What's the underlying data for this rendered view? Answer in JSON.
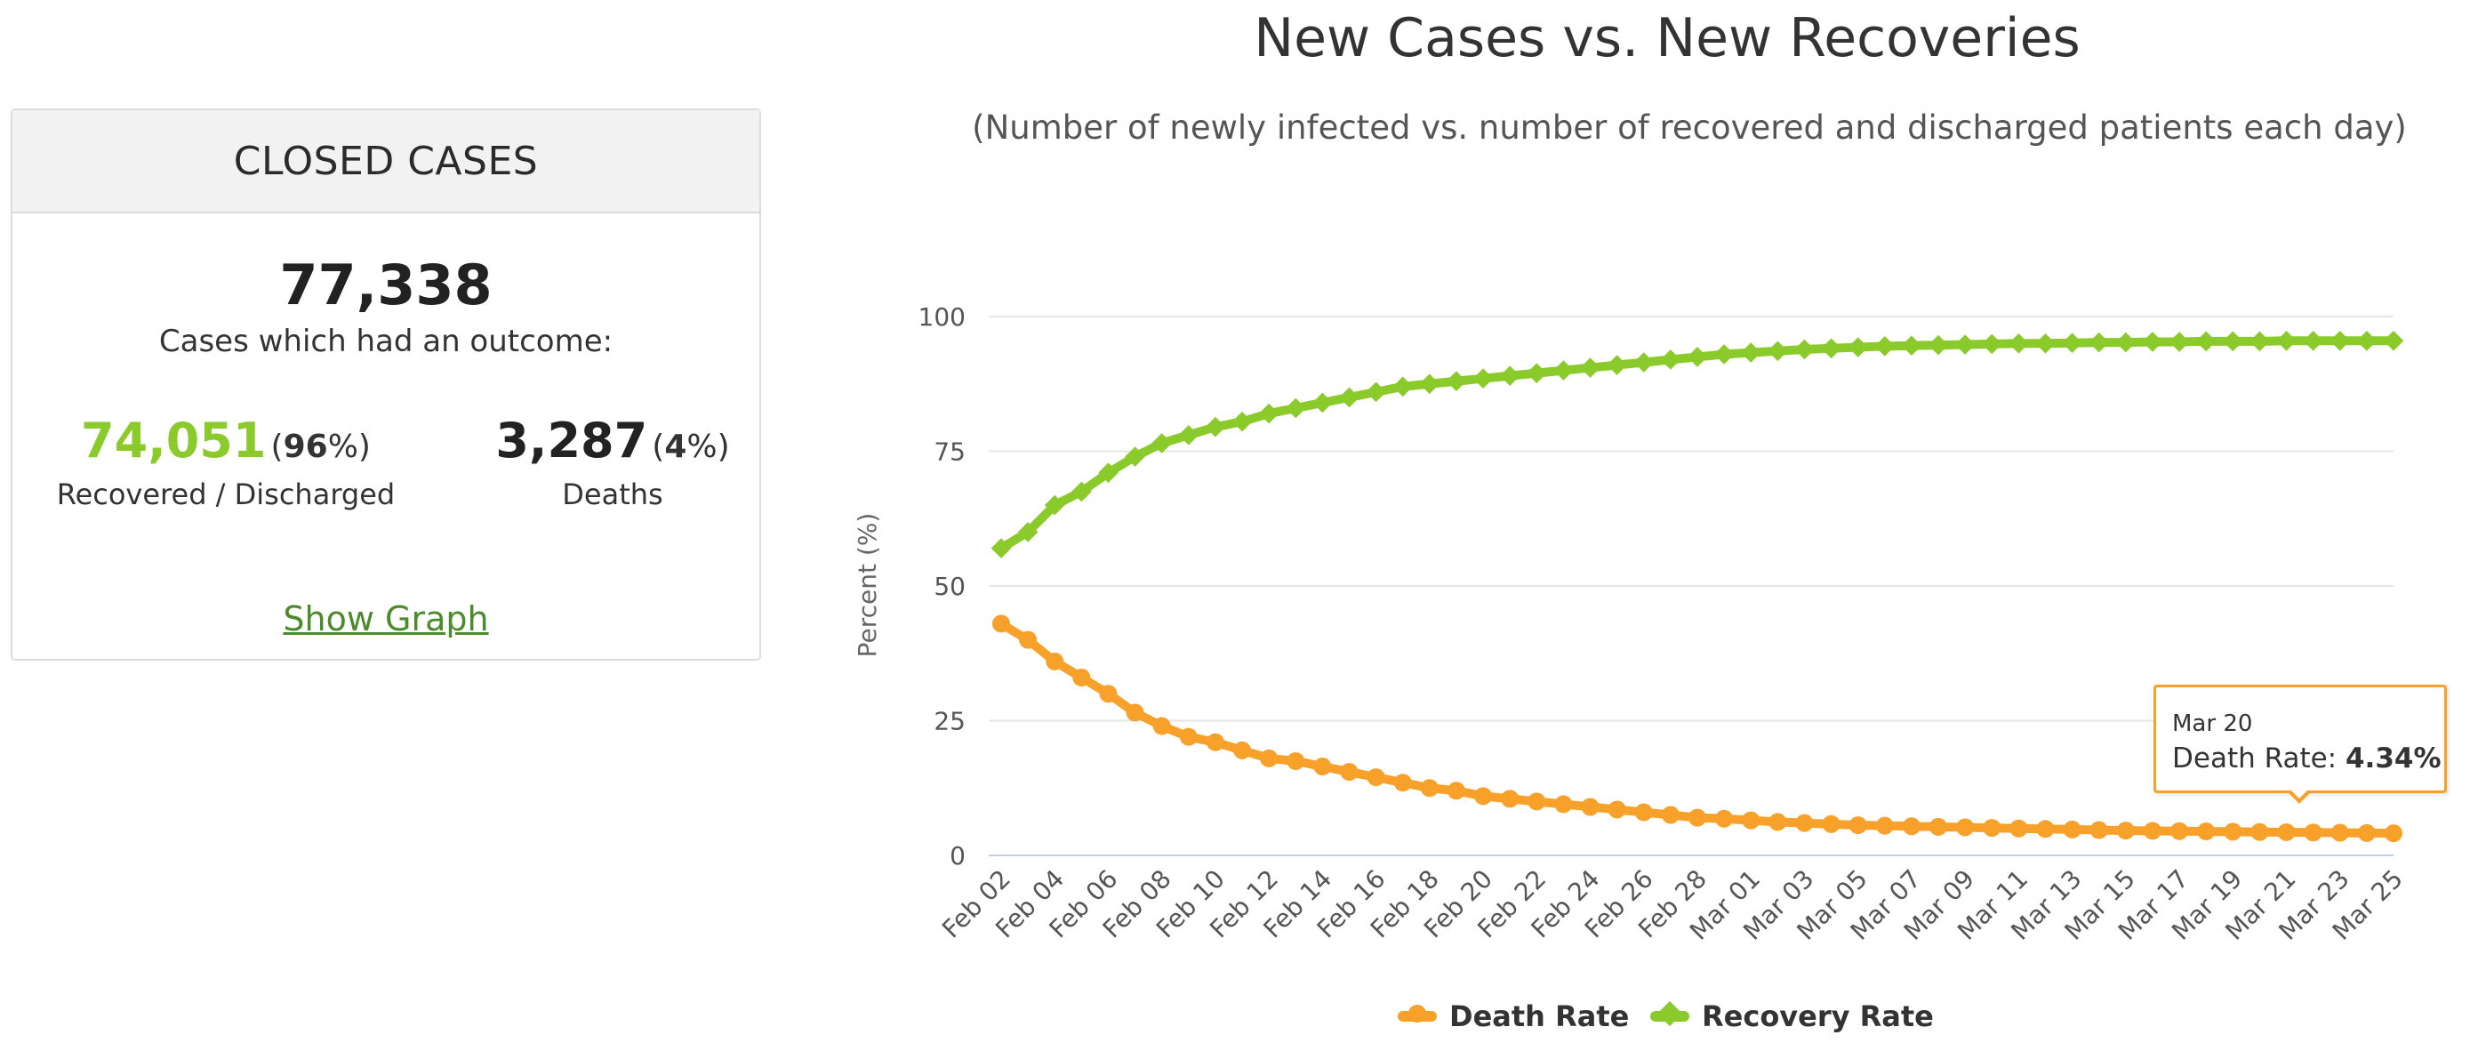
{
  "panel": {
    "title": "CLOSED CASES",
    "total": "77,338",
    "total_label": "Cases which had an outcome:",
    "recovered": {
      "value": "74,051",
      "pct": "96",
      "label": "Recovered / Discharged"
    },
    "deaths": {
      "value": "3,287",
      "pct": "4",
      "label": "Deaths"
    },
    "link": "Show Graph"
  },
  "colors": {
    "death": "#F7A12A",
    "recovery": "#8ACA2B",
    "recovered_text": "#8ACA2B",
    "link": "#4b8b2b"
  },
  "tooltip": {
    "date": "Mar 20",
    "label": "Death Rate:",
    "value": "4.34%"
  },
  "chart_data": {
    "type": "line",
    "title": "New Cases vs. New Recoveries",
    "subtitle": "(Number of newly infected vs. number of recovered and discharged patients each day)",
    "ylabel": "Percent (%)",
    "xlabel": "",
    "ylim": [
      0,
      100
    ],
    "yticks": [
      0,
      25,
      50,
      75,
      100
    ],
    "grid": true,
    "legend_position": "bottom-center",
    "x": [
      "Feb 02",
      "Feb 03",
      "Feb 04",
      "Feb 05",
      "Feb 06",
      "Feb 07",
      "Feb 08",
      "Feb 09",
      "Feb 10",
      "Feb 11",
      "Feb 12",
      "Feb 13",
      "Feb 14",
      "Feb 15",
      "Feb 16",
      "Feb 17",
      "Feb 18",
      "Feb 19",
      "Feb 20",
      "Feb 21",
      "Feb 22",
      "Feb 23",
      "Feb 24",
      "Feb 25",
      "Feb 26",
      "Feb 27",
      "Feb 28",
      "Feb 29",
      "Mar 01",
      "Mar 02",
      "Mar 03",
      "Mar 04",
      "Mar 05",
      "Mar 06",
      "Mar 07",
      "Mar 08",
      "Mar 09",
      "Mar 10",
      "Mar 11",
      "Mar 12",
      "Mar 13",
      "Mar 14",
      "Mar 15",
      "Mar 16",
      "Mar 17",
      "Mar 18",
      "Mar 19",
      "Mar 20",
      "Mar 21",
      "Mar 22",
      "Mar 23",
      "Mar 24",
      "Mar 25"
    ],
    "x_tick_labels": [
      "Feb 02",
      "Feb 04",
      "Feb 06",
      "Feb 08",
      "Feb 10",
      "Feb 12",
      "Feb 14",
      "Feb 16",
      "Feb 18",
      "Feb 20",
      "Feb 22",
      "Feb 24",
      "Feb 26",
      "Feb 28",
      "Mar 01",
      "Mar 03",
      "Mar 05",
      "Mar 07",
      "Mar 09",
      "Mar 11",
      "Mar 13",
      "Mar 15",
      "Mar 17",
      "Mar 19",
      "Mar 21",
      "Mar 23",
      "Mar 25"
    ],
    "series": [
      {
        "name": "Death Rate",
        "values": [
          43,
          40,
          36,
          33,
          30,
          26.5,
          24,
          22,
          21,
          19.5,
          18,
          17.5,
          16.5,
          15.5,
          14.5,
          13.5,
          12.5,
          12,
          11,
          10.5,
          10,
          9.5,
          9,
          8.5,
          8,
          7.5,
          7,
          6.8,
          6.5,
          6.2,
          6,
          5.8,
          5.6,
          5.5,
          5.4,
          5.3,
          5.2,
          5.1,
          5,
          4.9,
          4.8,
          4.7,
          4.6,
          4.55,
          4.5,
          4.45,
          4.4,
          4.34,
          4.3,
          4.25,
          4.2,
          4.15,
          4.1
        ]
      },
      {
        "name": "Recovery Rate",
        "values": [
          57,
          60,
          65,
          67.5,
          71,
          74,
          76.5,
          78,
          79.5,
          80.5,
          82,
          83,
          84,
          85,
          86,
          87,
          87.5,
          88,
          88.5,
          89,
          89.5,
          90,
          90.5,
          91,
          91.5,
          92,
          92.5,
          93,
          93.3,
          93.6,
          93.9,
          94.1,
          94.3,
          94.5,
          94.6,
          94.7,
          94.8,
          94.9,
          95,
          95,
          95.1,
          95.2,
          95.2,
          95.3,
          95.3,
          95.4,
          95.4,
          95.4,
          95.5,
          95.5,
          95.5,
          95.5,
          95.5
        ]
      }
    ]
  }
}
